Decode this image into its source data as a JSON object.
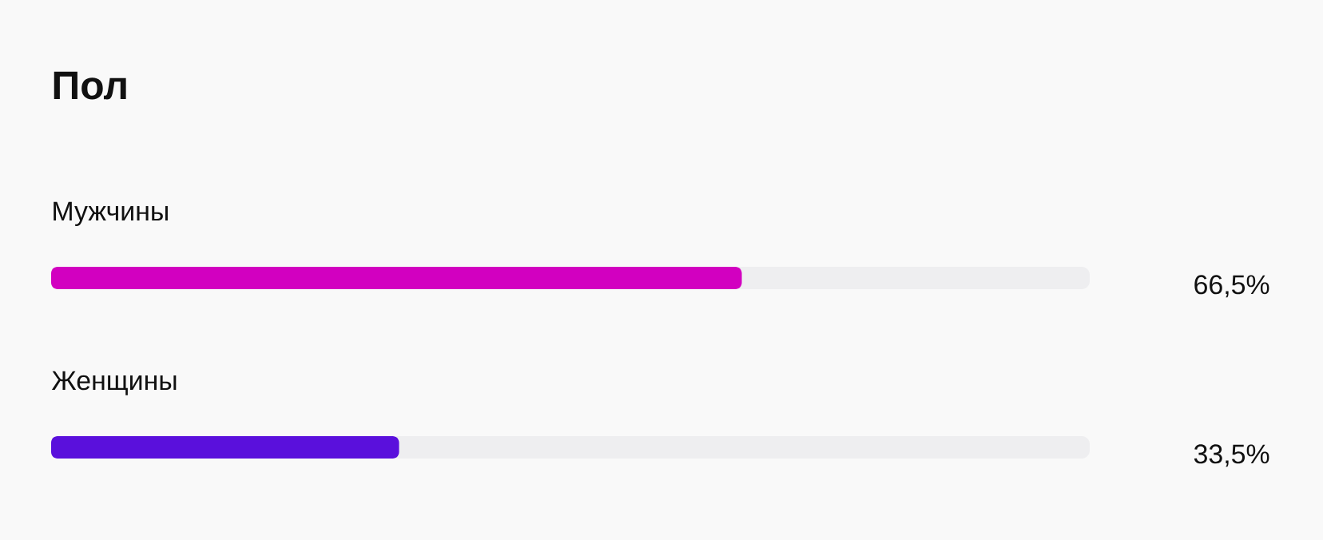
{
  "chart_data": {
    "type": "bar",
    "orientation": "horizontal",
    "title": "Пол",
    "categories": [
      "Мужчины",
      "Женщины"
    ],
    "values": [
      66.5,
      33.5
    ],
    "colors": [
      "#d200c0",
      "#5a10dc"
    ],
    "value_labels": [
      "66,5%",
      "33,5%"
    ],
    "xlim": [
      0,
      100
    ]
  }
}
